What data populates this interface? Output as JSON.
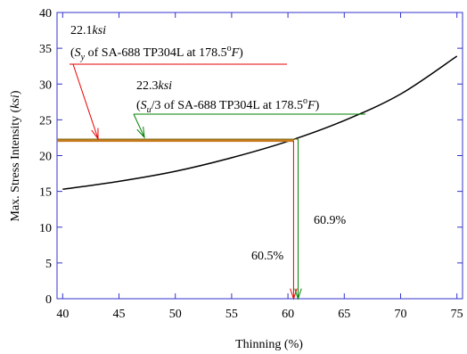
{
  "chart_data": {
    "type": "line",
    "xlabel": "Thinning (%)",
    "ylabel_parts": [
      "Max. Stress Intensity (",
      "ksi",
      ")"
    ],
    "xlim": [
      39.5,
      75.5
    ],
    "ylim": [
      0,
      40
    ],
    "xticks": [
      40,
      45,
      50,
      55,
      60,
      65,
      70,
      75
    ],
    "yticks": [
      0,
      5,
      10,
      15,
      20,
      25,
      30,
      35,
      40
    ],
    "grid": false,
    "series": [
      {
        "x": [
          40,
          45,
          50,
          55,
          60,
          65,
          70,
          75
        ],
        "y": [
          15.3,
          16.4,
          17.8,
          19.7,
          22.0,
          24.9,
          28.6,
          33.9
        ],
        "color": "#000000"
      }
    ],
    "reference_lines": [
      {
        "value": 22.1,
        "label": "22.1 ksi",
        "color": "#e60000"
      },
      {
        "value": 22.3,
        "label": "22.3 ksi",
        "color": "#008000"
      }
    ],
    "intersections": [
      {
        "x": 60.5,
        "label": "60.5%",
        "color": "#e60000"
      },
      {
        "x": 60.9,
        "label": "60.9%",
        "color": "#008000"
      }
    ],
    "annotations": {
      "red_value": "22.1",
      "red_unit": "ksi",
      "red_line2_open": "(",
      "red_line2_S": "S",
      "red_line2_sub": "y",
      "red_line2_rest": " of SA-688 TP304L at 178.5",
      "red_line2_deg": "o",
      "red_line2_F": "F",
      "red_line2_close": ")",
      "green_value": "22.3",
      "green_unit": "ksi",
      "green_line2_open": "(",
      "green_line2_S": "S",
      "green_line2_sub": "u",
      "green_line2_rest": "/3 of SA-688 TP304L at 178.5",
      "green_line2_deg": "o",
      "green_line2_F": "F",
      "green_line2_close": ")",
      "pct_red": "60.5%",
      "pct_green": "60.9%"
    },
    "colors": {
      "frame": "#3333cc",
      "curve": "#000000",
      "red": "#e60000",
      "green": "#008000",
      "orange": "#c87a1e"
    }
  }
}
